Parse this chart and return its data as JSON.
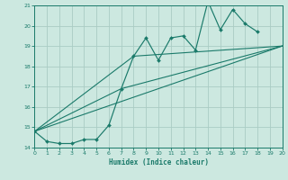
{
  "title": "",
  "xlabel": "Humidex (Indice chaleur)",
  "ylabel": "",
  "xlim": [
    0,
    20
  ],
  "ylim": [
    14,
    21
  ],
  "xticks": [
    0,
    1,
    2,
    3,
    4,
    5,
    6,
    7,
    8,
    9,
    10,
    11,
    12,
    13,
    14,
    15,
    16,
    17,
    18,
    19,
    20
  ],
  "yticks": [
    14,
    15,
    16,
    17,
    18,
    19,
    20,
    21
  ],
  "bg_color": "#cce8e0",
  "line_color": "#1a7a6a",
  "grid_color": "#aaccc4",
  "series1_x": [
    0,
    1,
    2,
    3,
    4,
    5,
    6,
    7,
    8,
    9,
    10,
    11,
    12,
    13,
    14,
    15,
    16,
    17,
    18
  ],
  "series1_y": [
    14.8,
    14.3,
    14.2,
    14.2,
    14.4,
    14.4,
    15.1,
    16.9,
    18.5,
    19.4,
    18.3,
    19.4,
    19.5,
    18.8,
    21.2,
    19.8,
    20.8,
    20.1,
    19.7
  ],
  "series2_x": [
    0,
    20
  ],
  "series2_y": [
    14.8,
    19.0
  ],
  "series3_x": [
    0,
    7,
    20
  ],
  "series3_y": [
    14.8,
    16.9,
    19.0
  ],
  "series4_x": [
    0,
    8,
    20
  ],
  "series4_y": [
    14.8,
    18.5,
    19.0
  ]
}
